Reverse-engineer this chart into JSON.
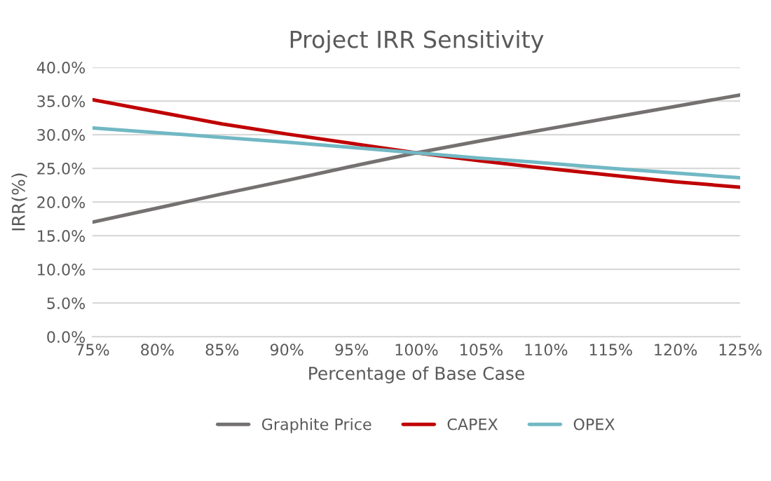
{
  "chart_data": {
    "type": "line",
    "title": "Project IRR Sensitivity",
    "xlabel": "Percentage of Base Case",
    "ylabel": "IRR(%)",
    "categories": [
      "75%",
      "80%",
      "85%",
      "90%",
      "95%",
      "100%",
      "105%",
      "110%",
      "115%",
      "120%",
      "125%"
    ],
    "series": [
      {
        "name": "Graphite Price",
        "color": "#767171",
        "values": [
          17.0,
          19.1,
          21.2,
          23.2,
          25.3,
          27.3,
          29.1,
          30.8,
          32.5,
          34.2,
          35.9
        ]
      },
      {
        "name": "CAPEX",
        "color": "#c00000",
        "values": [
          35.2,
          33.4,
          31.6,
          30.1,
          28.7,
          27.3,
          26.1,
          25.0,
          24.0,
          23.0,
          22.2
        ]
      },
      {
        "name": "OPEX",
        "color": "#71b8c4",
        "values": [
          31.0,
          30.3,
          29.6,
          28.9,
          28.1,
          27.3,
          26.5,
          25.8,
          25.0,
          24.3,
          23.6
        ]
      }
    ],
    "ylim": [
      0,
      40
    ],
    "yticks": [
      {
        "value": 0,
        "label": "0.0%"
      },
      {
        "value": 5,
        "label": "5.0%"
      },
      {
        "value": 10,
        "label": "10.0%"
      },
      {
        "value": 15,
        "label": "15.0%"
      },
      {
        "value": 20,
        "label": "20.0%"
      },
      {
        "value": 25,
        "label": "25.0%"
      },
      {
        "value": 30,
        "label": "30.0%"
      },
      {
        "value": 35,
        "label": "35.0%"
      },
      {
        "value": 40,
        "label": "40.0%"
      }
    ],
    "grid": "y",
    "legend": "bottom",
    "marker": "none",
    "line_style": "solid"
  }
}
